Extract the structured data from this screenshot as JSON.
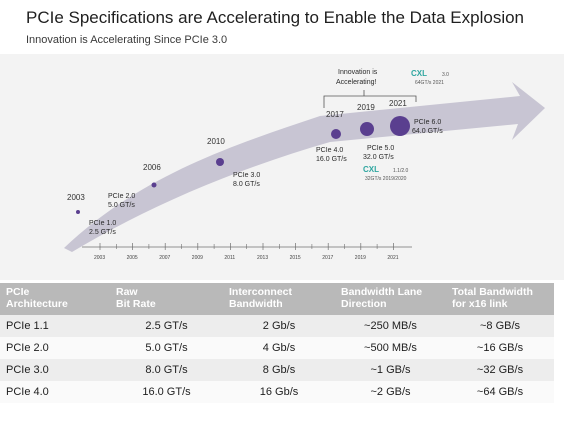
{
  "header": {
    "title": "PCIe Specifications are Accelerating to Enable the Data Explosion",
    "subtitle": "Innovation is Accelerating Since PCIe 3.0"
  },
  "diagram": {
    "milestones": [
      {
        "year": "2003",
        "label_line1": "PCIe 1.0",
        "label_line2": "2.5 GT/s"
      },
      {
        "year": "2006",
        "label_line1": "PCIe 2.0",
        "label_line2": "5.0 GT/s"
      },
      {
        "year": "2010",
        "label_line1": "PCIe 3.0",
        "label_line2": "8.0 GT/s"
      },
      {
        "year": "2017",
        "label_line1": "PCIe 4.0",
        "label_line2": "16.0 GT/s"
      },
      {
        "year": "2019",
        "label_line1": "PCIe 5.0",
        "label_line2": "32.0 GT/s"
      },
      {
        "year": "2021",
        "label_line1": "PCIe 6.0",
        "label_line2": "64.0 GT/s"
      }
    ],
    "innovation_note_line1": "Innovation is",
    "innovation_note_line2": "Accelerating!",
    "cxl_top": {
      "logo": "CXL",
      "version": "3.0",
      "detail": "64GT/s 2021"
    },
    "cxl_bottom": {
      "logo": "CXL",
      "version": "1.1/2.0",
      "detail": "32GT/s 2019/2020"
    },
    "axis_ticks": [
      "2003",
      "2005",
      "2007",
      "2009",
      "2011",
      "2013",
      "2015",
      "2017",
      "2019",
      "2021"
    ],
    "colors": {
      "dot": "#5a3f8f",
      "arrow": "#c3c0cf",
      "axis": "#6f6f6f"
    }
  },
  "table": {
    "headers": [
      [
        "PCIe",
        "Architecture"
      ],
      [
        "Raw",
        "Bit Rate"
      ],
      [
        "Interconnect",
        "Bandwidth"
      ],
      [
        "Bandwidth Lane",
        "Direction"
      ],
      [
        "Total Bandwidth",
        "for x16 link"
      ]
    ],
    "rows": [
      [
        "PCIe 1.1",
        "2.5 GT/s",
        "2 Gb/s",
        "~250 MB/s",
        "~8 GB/s"
      ],
      [
        "PCIe 2.0",
        "5.0 GT/s",
        "4 Gb/s",
        "~500 MB/s",
        "~16 GB/s"
      ],
      [
        "PCIe 3.0",
        "8.0 GT/s",
        "8 Gb/s",
        "~1 GB/s",
        "~32 GB/s"
      ],
      [
        "PCIe 4.0",
        "16.0 GT/s",
        "16 Gb/s",
        "~2 GB/s",
        "~64 GB/s"
      ]
    ]
  }
}
